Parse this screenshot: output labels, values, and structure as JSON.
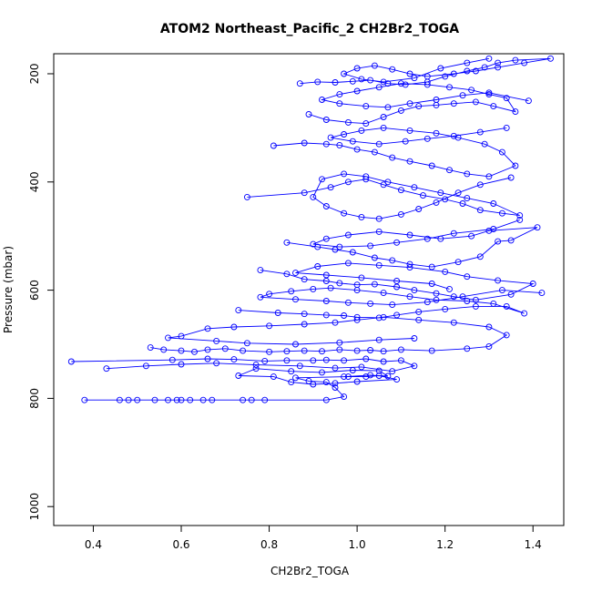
{
  "chart_data": {
    "type": "line",
    "title": "ATOM2 Northeast_Pacific_2 CH2Br2_TOGA",
    "xlabel": "CH2Br2_TOGA",
    "ylabel": "Pressure (mbar)",
    "xlim": [
      0.31,
      1.47
    ],
    "ylim": [
      1035,
      163
    ],
    "y_reversed": true,
    "grid": false,
    "legend": "none",
    "series_color": "#0000ff",
    "xticks": [
      0.4,
      0.6,
      0.8,
      1.0,
      1.2,
      1.4
    ],
    "xtick_labels": [
      "0.4",
      "0.6",
      "0.8",
      "1.0",
      "1.2",
      "1.4"
    ],
    "yticks": [
      200,
      400,
      600,
      800,
      1000
    ],
    "ytick_labels": [
      "200",
      "400",
      "600",
      "800",
      "1000"
    ],
    "series": [
      {
        "points": [
          [
            0.38,
            803
          ],
          [
            0.46,
            803
          ],
          [
            0.48,
            803
          ],
          [
            0.5,
            803
          ],
          [
            0.54,
            803
          ],
          [
            0.57,
            803
          ],
          [
            0.59,
            803
          ],
          [
            0.6,
            803
          ],
          [
            0.62,
            803
          ],
          [
            0.65,
            803
          ],
          [
            0.67,
            803
          ],
          [
            0.74,
            803
          ],
          [
            0.76,
            803
          ],
          [
            0.79,
            803
          ],
          [
            0.93,
            803
          ],
          [
            0.97,
            797
          ],
          [
            0.95,
            780
          ],
          [
            0.93,
            770
          ],
          [
            0.89,
            768
          ],
          [
            0.86,
            762
          ],
          [
            0.98,
            760
          ],
          [
            1.02,
            760
          ],
          [
            1.05,
            758
          ],
          [
            1.09,
            765
          ],
          [
            1.0,
            769
          ],
          [
            0.95,
            772
          ],
          [
            0.9,
            774
          ],
          [
            0.85,
            770
          ],
          [
            0.81,
            760
          ],
          [
            0.73,
            758
          ],
          [
            0.77,
            745
          ],
          [
            0.85,
            750
          ],
          [
            0.92,
            752
          ],
          [
            0.99,
            748
          ],
          [
            1.05,
            749
          ],
          [
            1.07,
            759
          ],
          [
            1.03,
            757
          ],
          [
            0.97,
            760
          ]
        ]
      },
      {
        "points": [
          [
            0.35,
            732
          ],
          [
            0.58,
            729
          ],
          [
            0.66,
            727
          ],
          [
            0.72,
            728
          ],
          [
            0.79,
            731
          ],
          [
            0.84,
            730
          ],
          [
            0.9,
            730
          ],
          [
            0.93,
            729
          ],
          [
            0.97,
            730
          ],
          [
            1.02,
            727
          ],
          [
            1.06,
            732
          ],
          [
            1.1,
            730
          ],
          [
            1.13,
            740
          ],
          [
            1.08,
            750
          ],
          [
            1.01,
            742
          ],
          [
            0.95,
            744
          ],
          [
            0.87,
            740
          ],
          [
            0.77,
            738
          ],
          [
            0.68,
            735
          ],
          [
            0.6,
            737
          ],
          [
            0.52,
            740
          ],
          [
            0.43,
            745
          ]
        ]
      },
      {
        "points": [
          [
            0.53,
            706
          ],
          [
            0.56,
            710
          ],
          [
            0.6,
            712
          ],
          [
            0.63,
            714
          ],
          [
            0.66,
            710
          ],
          [
            0.7,
            708
          ],
          [
            0.74,
            712
          ],
          [
            0.8,
            714
          ],
          [
            0.84,
            713
          ],
          [
            0.88,
            712
          ],
          [
            0.92,
            713
          ],
          [
            0.96,
            710
          ],
          [
            1.0,
            712
          ],
          [
            1.03,
            711
          ],
          [
            1.06,
            713
          ],
          [
            1.1,
            710
          ],
          [
            1.17,
            712
          ],
          [
            1.25,
            708
          ],
          [
            1.3,
            704
          ],
          [
            1.34,
            683
          ],
          [
            1.3,
            668
          ],
          [
            1.22,
            660
          ],
          [
            1.14,
            655
          ],
          [
            1.06,
            650
          ],
          [
            1.0,
            655
          ],
          [
            0.95,
            660
          ],
          [
            0.88,
            663
          ],
          [
            0.8,
            666
          ],
          [
            0.72,
            668
          ],
          [
            0.66,
            671
          ],
          [
            0.6,
            685
          ],
          [
            0.57,
            688
          ],
          [
            0.68,
            694
          ],
          [
            0.75,
            698
          ],
          [
            0.86,
            700
          ],
          [
            0.96,
            697
          ],
          [
            1.05,
            692
          ],
          [
            1.13,
            689
          ]
        ]
      },
      {
        "points": [
          [
            0.73,
            637
          ],
          [
            0.82,
            642
          ],
          [
            0.88,
            644
          ],
          [
            0.93,
            646
          ],
          [
            0.97,
            647
          ],
          [
            1.0,
            650
          ],
          [
            1.05,
            651
          ],
          [
            1.09,
            646
          ],
          [
            1.14,
            640
          ],
          [
            1.2,
            635
          ],
          [
            1.27,
            630
          ],
          [
            1.34,
            630
          ],
          [
            1.38,
            643
          ],
          [
            1.31,
            625
          ],
          [
            1.25,
            620
          ],
          [
            1.18,
            618
          ],
          [
            1.12,
            612
          ],
          [
            1.06,
            605
          ],
          [
            1.0,
            600
          ],
          [
            0.94,
            596
          ],
          [
            0.9,
            598
          ],
          [
            0.85,
            602
          ],
          [
            0.8,
            607
          ],
          [
            0.78,
            613
          ],
          [
            0.86,
            617
          ],
          [
            0.93,
            620
          ],
          [
            0.98,
            623
          ],
          [
            1.03,
            625
          ],
          [
            1.08,
            627
          ],
          [
            1.16,
            622
          ],
          [
            1.24,
            612
          ],
          [
            1.33,
            600
          ],
          [
            1.42,
            605
          ]
        ]
      },
      {
        "points": [
          [
            0.78,
            563
          ],
          [
            0.84,
            570
          ],
          [
            0.88,
            580
          ],
          [
            0.93,
            583
          ],
          [
            0.96,
            587
          ],
          [
            1.0,
            590
          ],
          [
            1.04,
            589
          ],
          [
            1.09,
            594
          ],
          [
            1.13,
            600
          ],
          [
            1.18,
            606
          ],
          [
            1.22,
            612
          ],
          [
            1.27,
            618
          ],
          [
            1.35,
            608
          ],
          [
            1.4,
            588
          ],
          [
            1.32,
            582
          ],
          [
            1.25,
            575
          ],
          [
            1.2,
            566
          ],
          [
            1.12,
            558
          ],
          [
            1.05,
            554
          ],
          [
            0.98,
            550
          ],
          [
            0.91,
            556
          ],
          [
            0.86,
            568
          ],
          [
            0.93,
            572
          ],
          [
            1.01,
            577
          ],
          [
            1.09,
            583
          ],
          [
            1.17,
            588
          ],
          [
            1.21,
            598
          ]
        ]
      },
      {
        "points": [
          [
            0.84,
            512
          ],
          [
            0.91,
            520
          ],
          [
            0.95,
            525
          ],
          [
            0.99,
            530
          ],
          [
            1.04,
            540
          ],
          [
            1.08,
            545
          ],
          [
            1.12,
            552
          ],
          [
            1.17,
            557
          ],
          [
            1.23,
            548
          ],
          [
            1.28,
            538
          ],
          [
            1.32,
            510
          ],
          [
            1.35,
            508
          ],
          [
            1.41,
            484
          ],
          [
            1.3,
            490
          ],
          [
            1.26,
            500
          ],
          [
            1.19,
            505
          ],
          [
            1.12,
            498
          ],
          [
            1.05,
            492
          ],
          [
            0.98,
            498
          ],
          [
            0.93,
            505
          ],
          [
            0.9,
            515
          ],
          [
            0.96,
            520
          ],
          [
            1.03,
            518
          ],
          [
            1.09,
            512
          ],
          [
            1.16,
            505
          ],
          [
            1.22,
            495
          ],
          [
            1.31,
            487
          ],
          [
            1.37,
            470
          ]
        ]
      },
      {
        "points": [
          [
            0.75,
            428
          ],
          [
            0.88,
            420
          ],
          [
            0.94,
            410
          ],
          [
            0.98,
            400
          ],
          [
            1.02,
            395
          ],
          [
            1.06,
            405
          ],
          [
            1.1,
            415
          ],
          [
            1.15,
            425
          ],
          [
            1.2,
            432
          ],
          [
            1.24,
            440
          ],
          [
            1.28,
            452
          ],
          [
            1.33,
            458
          ],
          [
            1.37,
            462
          ],
          [
            1.31,
            440
          ],
          [
            1.25,
            430
          ],
          [
            1.19,
            420
          ],
          [
            1.13,
            410
          ],
          [
            1.07,
            400
          ],
          [
            1.02,
            390
          ],
          [
            0.97,
            385
          ],
          [
            0.92,
            395
          ],
          [
            0.9,
            428
          ],
          [
            0.93,
            445
          ],
          [
            0.97,
            458
          ],
          [
            1.01,
            465
          ],
          [
            1.05,
            468
          ],
          [
            1.1,
            460
          ],
          [
            1.14,
            450
          ],
          [
            1.18,
            438
          ],
          [
            1.23,
            420
          ],
          [
            1.28,
            405
          ],
          [
            1.35,
            392
          ]
        ]
      },
      {
        "points": [
          [
            0.81,
            333
          ],
          [
            0.88,
            328
          ],
          [
            0.93,
            330
          ],
          [
            0.96,
            332
          ],
          [
            1.0,
            340
          ],
          [
            1.04,
            345
          ],
          [
            1.08,
            355
          ],
          [
            1.12,
            362
          ],
          [
            1.17,
            370
          ],
          [
            1.21,
            378
          ],
          [
            1.25,
            385
          ],
          [
            1.3,
            390
          ],
          [
            1.36,
            370
          ],
          [
            1.33,
            345
          ],
          [
            1.29,
            330
          ],
          [
            1.23,
            318
          ],
          [
            1.18,
            310
          ],
          [
            1.12,
            305
          ],
          [
            1.06,
            300
          ],
          [
            1.01,
            305
          ],
          [
            0.97,
            312
          ],
          [
            0.94,
            318
          ],
          [
            0.99,
            325
          ],
          [
            1.05,
            330
          ],
          [
            1.11,
            325
          ],
          [
            1.16,
            320
          ],
          [
            1.22,
            315
          ],
          [
            1.28,
            308
          ],
          [
            1.34,
            300
          ]
        ]
      },
      {
        "points": [
          [
            0.89,
            275
          ],
          [
            0.93,
            285
          ],
          [
            0.98,
            290
          ],
          [
            1.02,
            292
          ],
          [
            1.06,
            280
          ],
          [
            1.1,
            268
          ],
          [
            1.14,
            260
          ],
          [
            1.18,
            258
          ],
          [
            1.22,
            255
          ],
          [
            1.27,
            252
          ],
          [
            1.31,
            260
          ],
          [
            1.36,
            270
          ],
          [
            1.34,
            245
          ],
          [
            1.3,
            238
          ],
          [
            1.26,
            230
          ],
          [
            1.21,
            225
          ],
          [
            1.16,
            220
          ],
          [
            1.1,
            218
          ],
          [
            1.05,
            225
          ],
          [
            1.0,
            232
          ],
          [
            0.96,
            238
          ],
          [
            0.92,
            248
          ],
          [
            0.96,
            255
          ],
          [
            1.02,
            260
          ],
          [
            1.07,
            262
          ],
          [
            1.12,
            255
          ],
          [
            1.18,
            248
          ],
          [
            1.24,
            240
          ],
          [
            1.3,
            235
          ],
          [
            1.39,
            250
          ]
        ]
      },
      {
        "points": [
          [
            0.87,
            218
          ],
          [
            0.91,
            215
          ],
          [
            0.95,
            216
          ],
          [
            0.99,
            214
          ],
          [
            1.03,
            212
          ],
          [
            1.07,
            218
          ],
          [
            1.11,
            220
          ],
          [
            1.16,
            215
          ],
          [
            1.2,
            205
          ],
          [
            1.25,
            195
          ],
          [
            1.29,
            188
          ],
          [
            1.32,
            180
          ],
          [
            1.36,
            175
          ],
          [
            1.44,
            172
          ],
          [
            1.38,
            180
          ],
          [
            1.32,
            188
          ],
          [
            1.27,
            195
          ],
          [
            1.22,
            200
          ],
          [
            1.16,
            205
          ],
          [
            1.12,
            200
          ],
          [
            1.08,
            192
          ],
          [
            1.04,
            185
          ],
          [
            1.0,
            190
          ],
          [
            0.97,
            200
          ],
          [
            1.01,
            210
          ],
          [
            1.06,
            215
          ],
          [
            1.13,
            208
          ],
          [
            1.19,
            190
          ],
          [
            1.25,
            180
          ],
          [
            1.3,
            172
          ]
        ]
      }
    ]
  }
}
